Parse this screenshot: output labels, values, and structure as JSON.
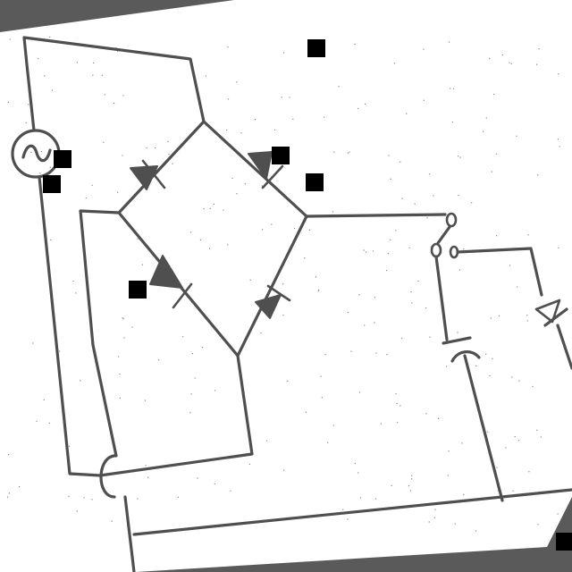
{
  "colors": {
    "background": "#5a5a5a",
    "paper": "#ffffff",
    "ink": "#4f4f4f",
    "fiducial": "#000000"
  },
  "components": [
    "ac-source",
    "diode-bridge",
    "switch",
    "capacitor",
    "zener-diode"
  ]
}
